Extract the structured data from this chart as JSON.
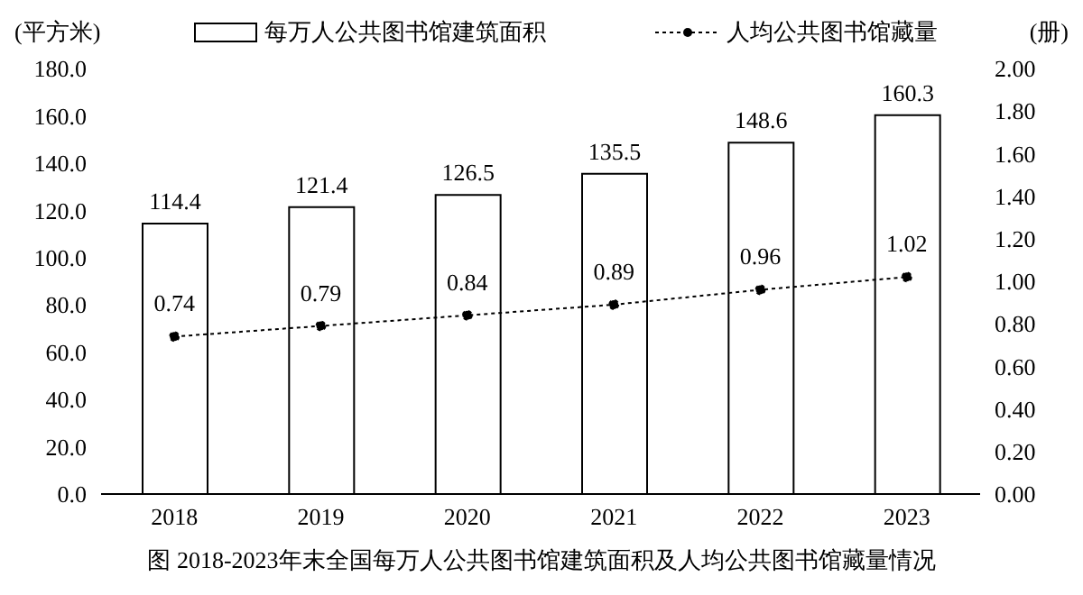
{
  "chart_data": {
    "type": "bar",
    "title": "图  2018-2023年末全国每万人公共图书馆建筑面积及人均公共图书馆藏量情况",
    "ylabel": "(平方米)",
    "y2label": "(册)",
    "categories": [
      "2018",
      "2019",
      "2020",
      "2021",
      "2022",
      "2023"
    ],
    "series": [
      {
        "name": "每万人公共图书馆建筑面积",
        "color": "#ffffff",
        "values": [
          114.4,
          121.4,
          126.5,
          135.5,
          148.6,
          160.3
        ]
      },
      {
        "name": "人均公共图书馆藏量",
        "type": "line",
        "axis": "y2",
        "color": "#000000",
        "marker": "circle",
        "line_style": "dotted",
        "values": [
          0.74,
          0.79,
          0.84,
          0.89,
          0.96,
          1.02
        ]
      }
    ],
    "ylim": [
      0,
      180
    ],
    "yticks": [
      {
        "value": 0,
        "label": "0.0"
      },
      {
        "value": 20,
        "label": "20.0"
      },
      {
        "value": 40,
        "label": "40.0"
      },
      {
        "value": 60,
        "label": "60.0"
      },
      {
        "value": 80,
        "label": "80.0"
      },
      {
        "value": 100,
        "label": "100.0"
      },
      {
        "value": 120,
        "label": "120.0"
      },
      {
        "value": 140,
        "label": "140.0"
      },
      {
        "value": 160,
        "label": "160.0"
      },
      {
        "value": 180,
        "label": "180.0"
      }
    ],
    "y2lim": [
      0,
      2
    ],
    "y2ticks": [
      {
        "value": 0,
        "label": "0.00"
      },
      {
        "value": 0.2,
        "label": "0.20"
      },
      {
        "value": 0.4,
        "label": "0.40"
      },
      {
        "value": 0.6,
        "label": "0.60"
      },
      {
        "value": 0.8,
        "label": "0.80"
      },
      {
        "value": 1,
        "label": "1.00"
      },
      {
        "value": 1.2,
        "label": "1.20"
      },
      {
        "value": 1.4,
        "label": "1.40"
      },
      {
        "value": 1.6,
        "label": "1.60"
      },
      {
        "value": 1.8,
        "label": "1.80"
      },
      {
        "value": 2,
        "label": "2.00"
      }
    ],
    "data_labels": true,
    "grid": false,
    "legend": "top"
  }
}
